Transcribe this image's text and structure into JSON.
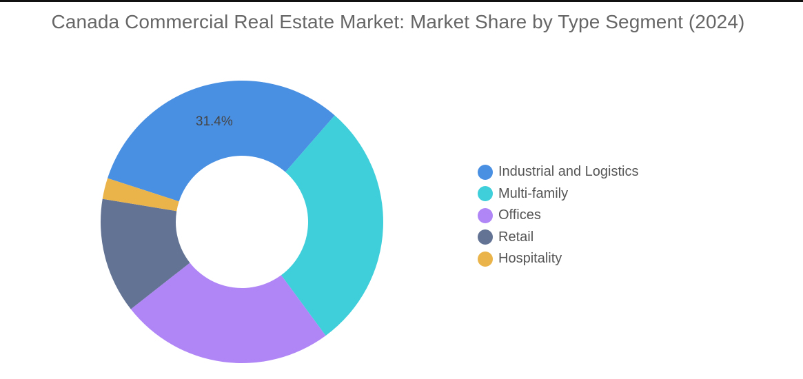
{
  "chart_data": {
    "type": "pie",
    "variant": "donut",
    "title": "Canada Commercial Real Estate Market: Market Share by Type Segment (2024)",
    "categories": [
      "Industrial and Logistics",
      "Multi-family",
      "Offices",
      "Retail",
      "Hospitality"
    ],
    "values": [
      31.4,
      28.5,
      24.5,
      13.2,
      2.4
    ],
    "colors": [
      "#4a90e2",
      "#3fcfdb",
      "#b086f7",
      "#637394",
      "#ebb44a"
    ],
    "data_labels": [
      {
        "category": "Industrial and Logistics",
        "text": "31.4%"
      }
    ],
    "legend_position": "right"
  }
}
